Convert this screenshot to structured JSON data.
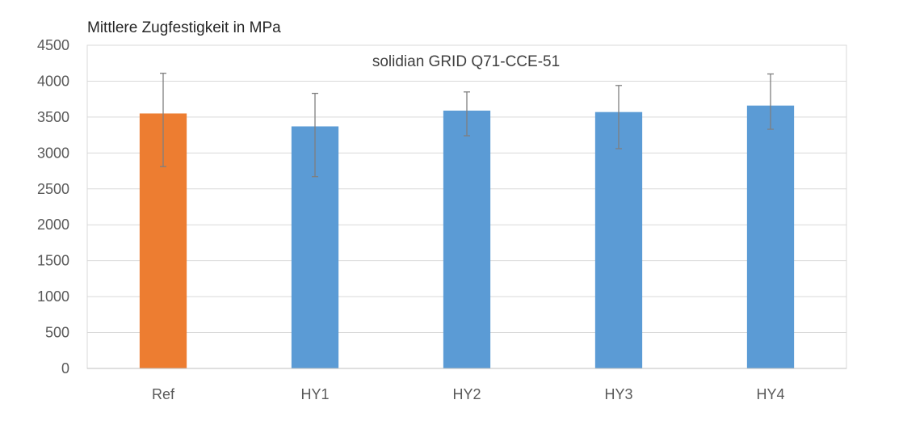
{
  "chart_data": {
    "type": "bar",
    "title": "solidian GRID Q71-CCE-51",
    "ylabel": "Mittlere Zugfestigkeit in MPa",
    "xlabel": "",
    "ylim": [
      0,
      4500
    ],
    "yticks": [
      0,
      500,
      1000,
      1500,
      2000,
      2500,
      3000,
      3500,
      4000,
      4500
    ],
    "categories": [
      "Ref",
      "HY1",
      "HY2",
      "HY3",
      "HY4"
    ],
    "values": [
      3550,
      3370,
      3590,
      3570,
      3660
    ],
    "error_low": [
      2810,
      2670,
      3240,
      3060,
      3330
    ],
    "error_high": [
      4110,
      3830,
      3850,
      3940,
      4100
    ],
    "colors": [
      "#ed7d31",
      "#5b9bd5",
      "#5b9bd5",
      "#5b9bd5",
      "#5b9bd5"
    ],
    "grid": true,
    "legend": "none"
  }
}
